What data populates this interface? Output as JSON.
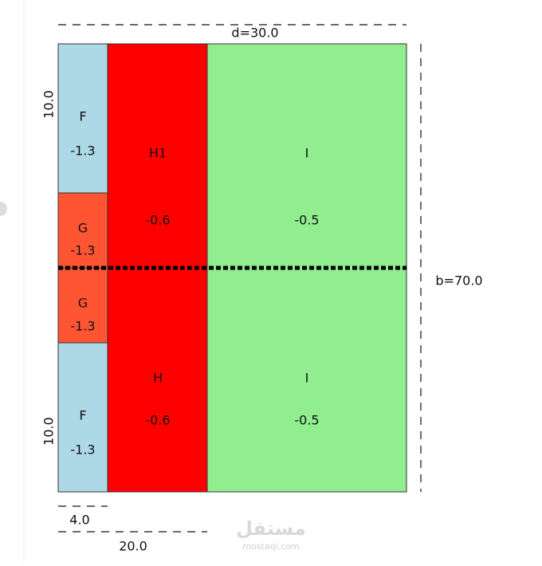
{
  "diagram": {
    "dimensions": {
      "top": "d=30.0",
      "right": "b=70.0",
      "left_top": "10.0",
      "left_bottom": "10.0",
      "bottom_small": "4.0",
      "bottom_large": "20.0"
    },
    "zones": [
      {
        "label": "F",
        "value": -1.3
      },
      {
        "label": "G",
        "value": -1.3
      },
      {
        "label": "H1",
        "value": -0.6
      },
      {
        "label": "I",
        "value": -0.5
      },
      {
        "label": "G",
        "value": -1.3
      },
      {
        "label": "F",
        "value": -1.3
      },
      {
        "label": "H",
        "value": -0.6
      },
      {
        "label": "I",
        "value": -0.5
      }
    ],
    "watermark": {
      "arabic": "مستقل",
      "site": "mostaqi.com"
    }
  }
}
